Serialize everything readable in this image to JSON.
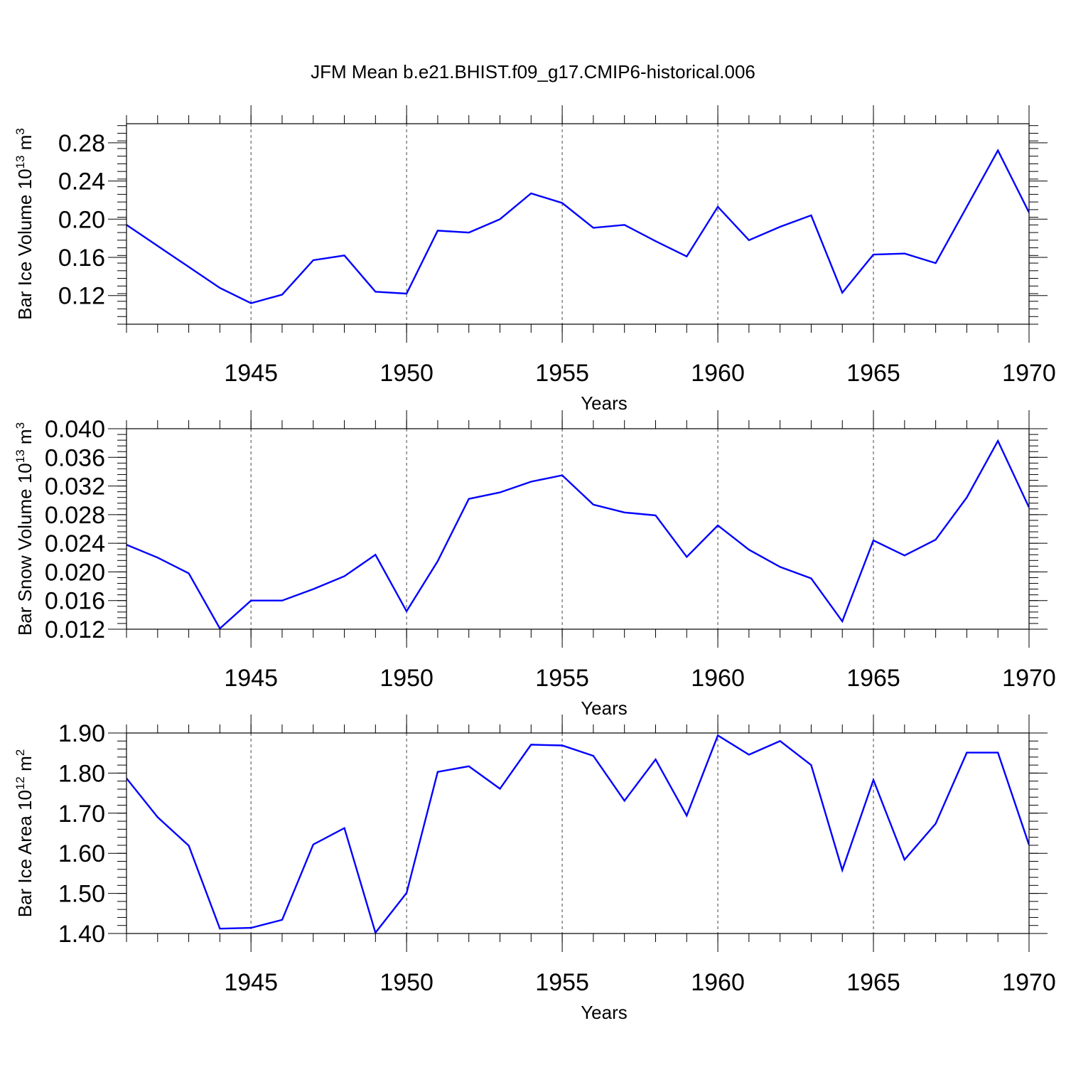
{
  "title": "JFM Mean b.e21.BHIST.f09_g17.CMIP6-historical.006",
  "colors": {
    "line": "#0000ff",
    "axis": "#000000"
  },
  "chart_data": [
    {
      "type": "line",
      "title": "JFM Mean b.e21.BHIST.f09_g17.CMIP6-historical.006",
      "xlabel": "Years",
      "ylabel": "Bar Ice Volume 10",
      "ylabel_exp": "13",
      "ylabel_unit": " m",
      "ylabel_unit_exp": "3",
      "xlim": [
        1941,
        1970
      ],
      "ylim": [
        0.09,
        0.3
      ],
      "xticks": [
        1945,
        1950,
        1955,
        1960,
        1965,
        1970
      ],
      "xtick_labels": [
        "1945",
        "1950",
        "1955",
        "1960",
        "1965",
        "1970"
      ],
      "yticks": [
        0.12,
        0.16,
        0.2,
        0.24,
        0.28
      ],
      "ytick_labels": [
        "0.12",
        "0.16",
        "0.20",
        "0.24",
        "0.28"
      ],
      "x": [
        1941,
        1942,
        1943,
        1944,
        1945,
        1946,
        1947,
        1948,
        1949,
        1950,
        1951,
        1952,
        1953,
        1954,
        1955,
        1956,
        1957,
        1958,
        1959,
        1960,
        1961,
        1962,
        1963,
        1964,
        1965,
        1966,
        1967,
        1968,
        1969,
        1970
      ],
      "series": [
        {
          "name": "Bar Ice Volume",
          "values": [
            0.194,
            0.172,
            0.15,
            0.128,
            0.112,
            0.121,
            0.157,
            0.162,
            0.124,
            0.122,
            0.188,
            0.186,
            0.2,
            0.227,
            0.217,
            0.191,
            0.194,
            0.177,
            0.161,
            0.213,
            0.178,
            0.192,
            0.204,
            0.123,
            0.163,
            0.164,
            0.154,
            0.213,
            0.272,
            0.207
          ]
        }
      ]
    },
    {
      "type": "line",
      "xlabel": "Years",
      "ylabel": "Bar Snow Volume 10",
      "ylabel_exp": "13",
      "ylabel_unit": " m",
      "ylabel_unit_exp": "3",
      "xlim": [
        1941,
        1970
      ],
      "ylim": [
        0.012,
        0.04
      ],
      "xticks": [
        1945,
        1950,
        1955,
        1960,
        1965,
        1970
      ],
      "xtick_labels": [
        "1945",
        "1950",
        "1955",
        "1960",
        "1965",
        "1970"
      ],
      "yticks": [
        0.012,
        0.016,
        0.02,
        0.024,
        0.028,
        0.032,
        0.036,
        0.04
      ],
      "ytick_labels": [
        "0.012",
        "0.016",
        "0.020",
        "0.024",
        "0.028",
        "0.032",
        "0.036",
        "0.040"
      ],
      "x": [
        1941,
        1942,
        1943,
        1944,
        1945,
        1946,
        1947,
        1948,
        1949,
        1950,
        1951,
        1952,
        1953,
        1954,
        1955,
        1956,
        1957,
        1958,
        1959,
        1960,
        1961,
        1962,
        1963,
        1964,
        1965,
        1966,
        1967,
        1968,
        1969,
        1970
      ],
      "series": [
        {
          "name": "Bar Snow Volume",
          "values": [
            0.0238,
            0.022,
            0.0198,
            0.0121,
            0.016,
            0.016,
            0.0176,
            0.0194,
            0.0224,
            0.0145,
            0.0215,
            0.0302,
            0.0311,
            0.0326,
            0.0335,
            0.0294,
            0.0283,
            0.0279,
            0.0221,
            0.0265,
            0.0231,
            0.0207,
            0.0191,
            0.0131,
            0.0244,
            0.0223,
            0.0245,
            0.0304,
            0.0383,
            0.029
          ]
        }
      ]
    },
    {
      "type": "line",
      "xlabel": "Years",
      "ylabel": "Bar Ice Area 10",
      "ylabel_exp": "12",
      "ylabel_unit": " m",
      "ylabel_unit_exp": "2",
      "xlim": [
        1941,
        1970
      ],
      "ylim": [
        1.4,
        1.9
      ],
      "xticks": [
        1945,
        1950,
        1955,
        1960,
        1965,
        1970
      ],
      "xtick_labels": [
        "1945",
        "1950",
        "1955",
        "1960",
        "1965",
        "1970"
      ],
      "yticks": [
        1.4,
        1.5,
        1.6,
        1.7,
        1.8,
        1.9
      ],
      "ytick_labels": [
        "1.40",
        "1.50",
        "1.60",
        "1.70",
        "1.80",
        "1.90"
      ],
      "x": [
        1941,
        1942,
        1943,
        1944,
        1945,
        1946,
        1947,
        1948,
        1949,
        1950,
        1951,
        1952,
        1953,
        1954,
        1955,
        1956,
        1957,
        1958,
        1959,
        1960,
        1961,
        1962,
        1963,
        1964,
        1965,
        1966,
        1967,
        1968,
        1969,
        1970
      ],
      "series": [
        {
          "name": "Bar Ice Area",
          "values": [
            1.787,
            1.69,
            1.619,
            1.412,
            1.414,
            1.434,
            1.622,
            1.663,
            1.402,
            1.501,
            1.803,
            1.817,
            1.761,
            1.871,
            1.869,
            1.843,
            1.731,
            1.834,
            1.694,
            1.894,
            1.846,
            1.88,
            1.82,
            1.558,
            1.783,
            1.584,
            1.674,
            1.851,
            1.851,
            1.621
          ]
        }
      ]
    }
  ]
}
